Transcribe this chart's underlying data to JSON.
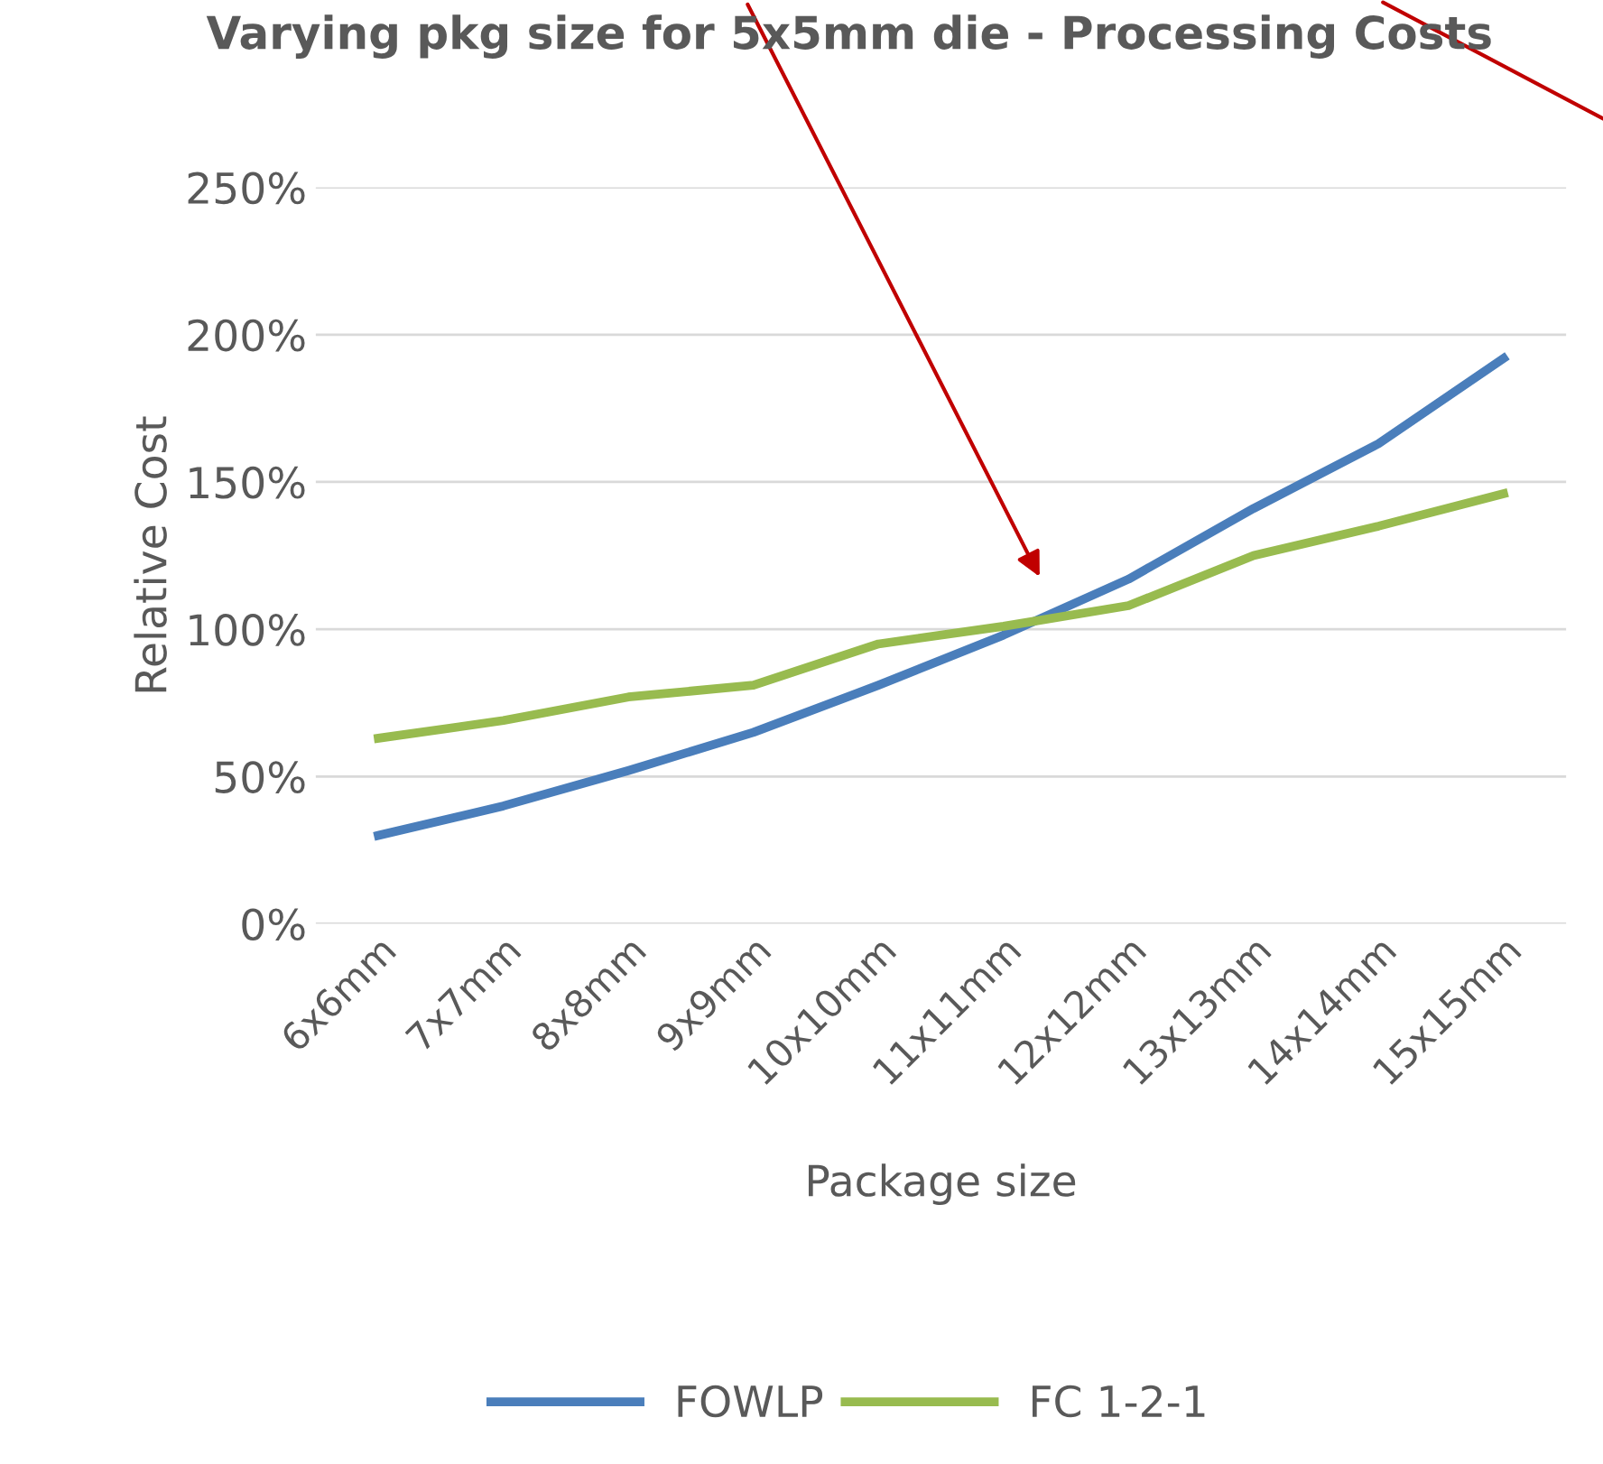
{
  "chart_data": {
    "type": "line",
    "title": "Varying pkg size for 5x5mm die - Processing Costs",
    "xlabel": "Package size",
    "ylabel": "Relative Cost",
    "categories": [
      "6x6mm",
      "7x7mm",
      "8x8mm",
      "9x9mm",
      "10x10mm",
      "11x11mm",
      "12x12mm",
      "13x13mm",
      "14x14mm",
      "15x15mm"
    ],
    "series": [
      {
        "name": "FOWLP",
        "color": "#4a7ebb",
        "values": [
          30,
          40,
          52,
          65,
          81,
          98,
          117,
          141,
          163,
          192
        ]
      },
      {
        "name": "FC 1-2-1",
        "color": "#98bb4f",
        "values": [
          63,
          69,
          77,
          81,
          95,
          101,
          108,
          125,
          135,
          146
        ]
      }
    ],
    "ylim": [
      0,
      250
    ],
    "yticks": [
      {
        "value": 0,
        "label": "0%"
      },
      {
        "value": 50,
        "label": "50%"
      },
      {
        "value": 100,
        "label": "100%"
      },
      {
        "value": 150,
        "label": "150%"
      },
      {
        "value": 200,
        "label": "200%"
      },
      {
        "value": 250,
        "label": "250%"
      }
    ],
    "grid": "y",
    "legend": "bottom",
    "marker": "none",
    "line_style": "solid"
  }
}
